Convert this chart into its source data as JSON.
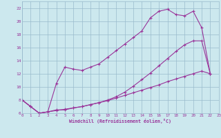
{
  "xlabel": "Windchill (Refroidissement éolien,°C)",
  "background_color": "#cce8ee",
  "grid_color": "#99bbcc",
  "line_color": "#993399",
  "xlim": [
    0,
    23
  ],
  "ylim": [
    6,
    23
  ],
  "xticks": [
    0,
    1,
    2,
    3,
    4,
    5,
    6,
    7,
    8,
    9,
    10,
    11,
    12,
    13,
    14,
    15,
    16,
    17,
    18,
    19,
    20,
    21,
    22,
    23
  ],
  "yticks": [
    6,
    8,
    10,
    12,
    14,
    16,
    18,
    20,
    22
  ],
  "line1_x": [
    0,
    1,
    2,
    3,
    4,
    5,
    6,
    7,
    8,
    9,
    10,
    11,
    12,
    13,
    14,
    15,
    16,
    17,
    18,
    19,
    20,
    21,
    22
  ],
  "line1_y": [
    8.0,
    7.0,
    6.0,
    6.2,
    6.4,
    6.6,
    6.8,
    7.0,
    7.3,
    7.6,
    7.9,
    8.3,
    8.7,
    9.1,
    9.5,
    9.9,
    10.3,
    10.8,
    11.2,
    11.6,
    12.0,
    12.4,
    12.0
  ],
  "line2_x": [
    0,
    1,
    2,
    3,
    4,
    5,
    6,
    7,
    8,
    9,
    10,
    11,
    12,
    13,
    14,
    15,
    16,
    17,
    18,
    19,
    20,
    21,
    22
  ],
  "line2_y": [
    8.0,
    7.0,
    6.0,
    6.2,
    6.5,
    6.5,
    6.8,
    7.0,
    7.3,
    7.6,
    8.0,
    8.5,
    9.2,
    10.1,
    11.1,
    12.1,
    13.2,
    14.3,
    15.4,
    16.4,
    17.0,
    17.0,
    12.0
  ],
  "line3_x": [
    0,
    1,
    2,
    3,
    4,
    5,
    6,
    7,
    8,
    9,
    10,
    11,
    12,
    13,
    14,
    15,
    16,
    17,
    18,
    19,
    20,
    21,
    22
  ],
  "line3_y": [
    8.0,
    7.0,
    6.0,
    6.2,
    10.5,
    13.0,
    12.7,
    12.5,
    13.0,
    13.5,
    14.5,
    15.5,
    16.5,
    17.5,
    18.5,
    20.5,
    21.5,
    21.8,
    21.0,
    20.8,
    21.5,
    19.0,
    12.0
  ]
}
